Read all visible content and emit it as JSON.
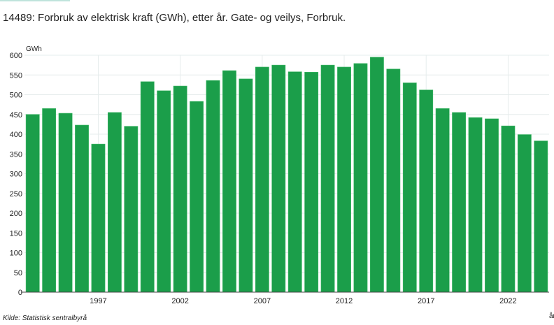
{
  "chart_data": {
    "type": "bar",
    "title": "14489: Forbruk av elektrisk kraft (GWh), etter år. Gate- og veilys, Forbruk.",
    "ylabel": "GWh",
    "xlabel": "år",
    "ylim": [
      0,
      600
    ],
    "yticks": [
      0,
      50,
      100,
      150,
      200,
      250,
      300,
      350,
      400,
      450,
      500,
      550,
      600
    ],
    "xtick_labels": [
      "1997",
      "2002",
      "2007",
      "2012",
      "2017",
      "2022"
    ],
    "grid": true,
    "bar_color": "#1b9e4a",
    "categories": [
      "1993",
      "1994",
      "1995",
      "1996",
      "1997",
      "1998",
      "1999",
      "2000",
      "2001",
      "2002",
      "2003",
      "2004",
      "2005",
      "2006",
      "2007",
      "2008",
      "2009",
      "2010",
      "2011",
      "2012",
      "2013",
      "2014",
      "2015",
      "2016",
      "2017",
      "2018",
      "2019",
      "2020",
      "2021",
      "2022",
      "2023",
      "2024"
    ],
    "values": [
      450,
      465,
      453,
      423,
      375,
      455,
      420,
      533,
      510,
      522,
      483,
      536,
      561,
      540,
      570,
      575,
      558,
      557,
      575,
      570,
      579,
      595,
      565,
      530,
      512,
      465,
      455,
      442,
      439,
      421,
      399,
      383
    ]
  },
  "source": "Kilde:  Statistisk sentralbyrå"
}
